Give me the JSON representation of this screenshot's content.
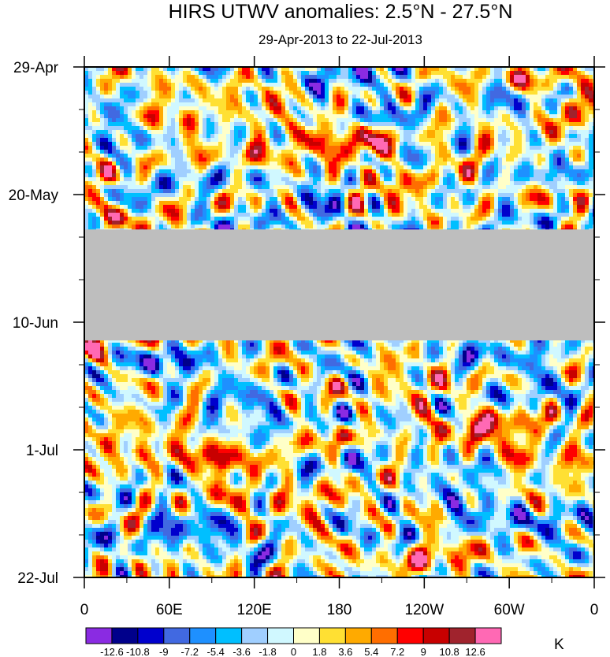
{
  "chart_data": {
    "type": "heatmap",
    "title": "HIRS UTWV anomalies: 2.5°N - 27.5°N",
    "subtitle": "29-Apr-2013 to 22-Jul-2013",
    "xlabel": "",
    "ylabel": "",
    "x_ticks": [
      "0",
      "60E",
      "120E",
      "180",
      "120W",
      "60W",
      "0"
    ],
    "x_tick_lon": [
      0,
      60,
      120,
      180,
      240,
      300,
      360
    ],
    "xlim": [
      0,
      360
    ],
    "y_ticks": [
      "29-Apr",
      "20-May",
      "10-Jun",
      "1-Jul",
      "22-Jul"
    ],
    "y_tick_day": [
      0,
      21,
      42,
      63,
      84
    ],
    "ylim_days": [
      0,
      84
    ],
    "missing_data_band_days": [
      27,
      45
    ],
    "missing_color": "#bebebe",
    "colorbar": {
      "unit": "K",
      "levels": [
        "-12.6",
        "-10.8",
        "-9",
        "-7.2",
        "-5.4",
        "-3.6",
        "-1.8",
        "0",
        "1.8",
        "3.6",
        "5.4",
        "7.2",
        "9",
        "10.8",
        "12.6"
      ],
      "colors": [
        "#8a2be2",
        "#00008b",
        "#0000cd",
        "#4169e1",
        "#1e90ff",
        "#00bfff",
        "#a0cfff",
        "#d0f8ff",
        "#ffffc8",
        "#ffe033",
        "#ffaa00",
        "#ff6e00",
        "#ff0000",
        "#c80000",
        "#a0232d",
        "#ff69b4"
      ]
    }
  }
}
